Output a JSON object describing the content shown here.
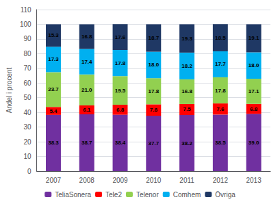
{
  "chart_data": {
    "type": "bar",
    "stacked": true,
    "categories": [
      "2007",
      "2008",
      "2009",
      "2010",
      "2011",
      "2012",
      "2013"
    ],
    "ylabel": "Andel i procent",
    "series": [
      {
        "name": "TeliaSonera",
        "color": "#7030A0",
        "values": [
          38.3,
          38.7,
          38.4,
          37.7,
          38.2,
          38.5,
          39.0
        ],
        "value_labels": [
          "38.3",
          "38.7",
          "38.4",
          "37.7",
          "38.2",
          "38.5",
          "39.0"
        ]
      },
      {
        "name": "Tele2",
        "color": "#FF0000",
        "values": [
          5.4,
          6.1,
          6.8,
          7.8,
          7.5,
          7.6,
          6.8
        ],
        "value_labels": [
          "5.4",
          "6.1",
          "6.8",
          "7.8",
          "7.5",
          "7.6",
          "6.8"
        ]
      },
      {
        "name": "Telenor",
        "color": "#92D050",
        "values": [
          23.7,
          21.0,
          19.5,
          17.8,
          16.8,
          17.8,
          17.1
        ],
        "value_labels": [
          "23.7",
          "21.0",
          "19.5",
          "17.8",
          "16.8",
          "17.8",
          "17.1"
        ]
      },
      {
        "name": "Comhem",
        "color": "#00B0F0",
        "values": [
          17.3,
          17.4,
          17.8,
          18.0,
          18.2,
          17.7,
          18.0
        ],
        "value_labels": [
          "17.3",
          "17.4",
          "17.8",
          "18.0",
          "18.2",
          "17.7",
          "18.0"
        ]
      },
      {
        "name": "Övriga",
        "color": "#1F3864",
        "values": [
          15.3,
          16.8,
          17.6,
          18.7,
          19.3,
          18.5,
          19.1
        ],
        "value_labels": [
          "15.3",
          "16.8",
          "17.6",
          "18.7",
          "19.3",
          "18.5",
          "19.1"
        ]
      }
    ],
    "ylim": [
      0,
      110
    ],
    "yticks": [
      0,
      10,
      20,
      30,
      40,
      50,
      60,
      70,
      80,
      90,
      100,
      110
    ],
    "grid": true,
    "legend": "bottom",
    "data_labels": true
  }
}
